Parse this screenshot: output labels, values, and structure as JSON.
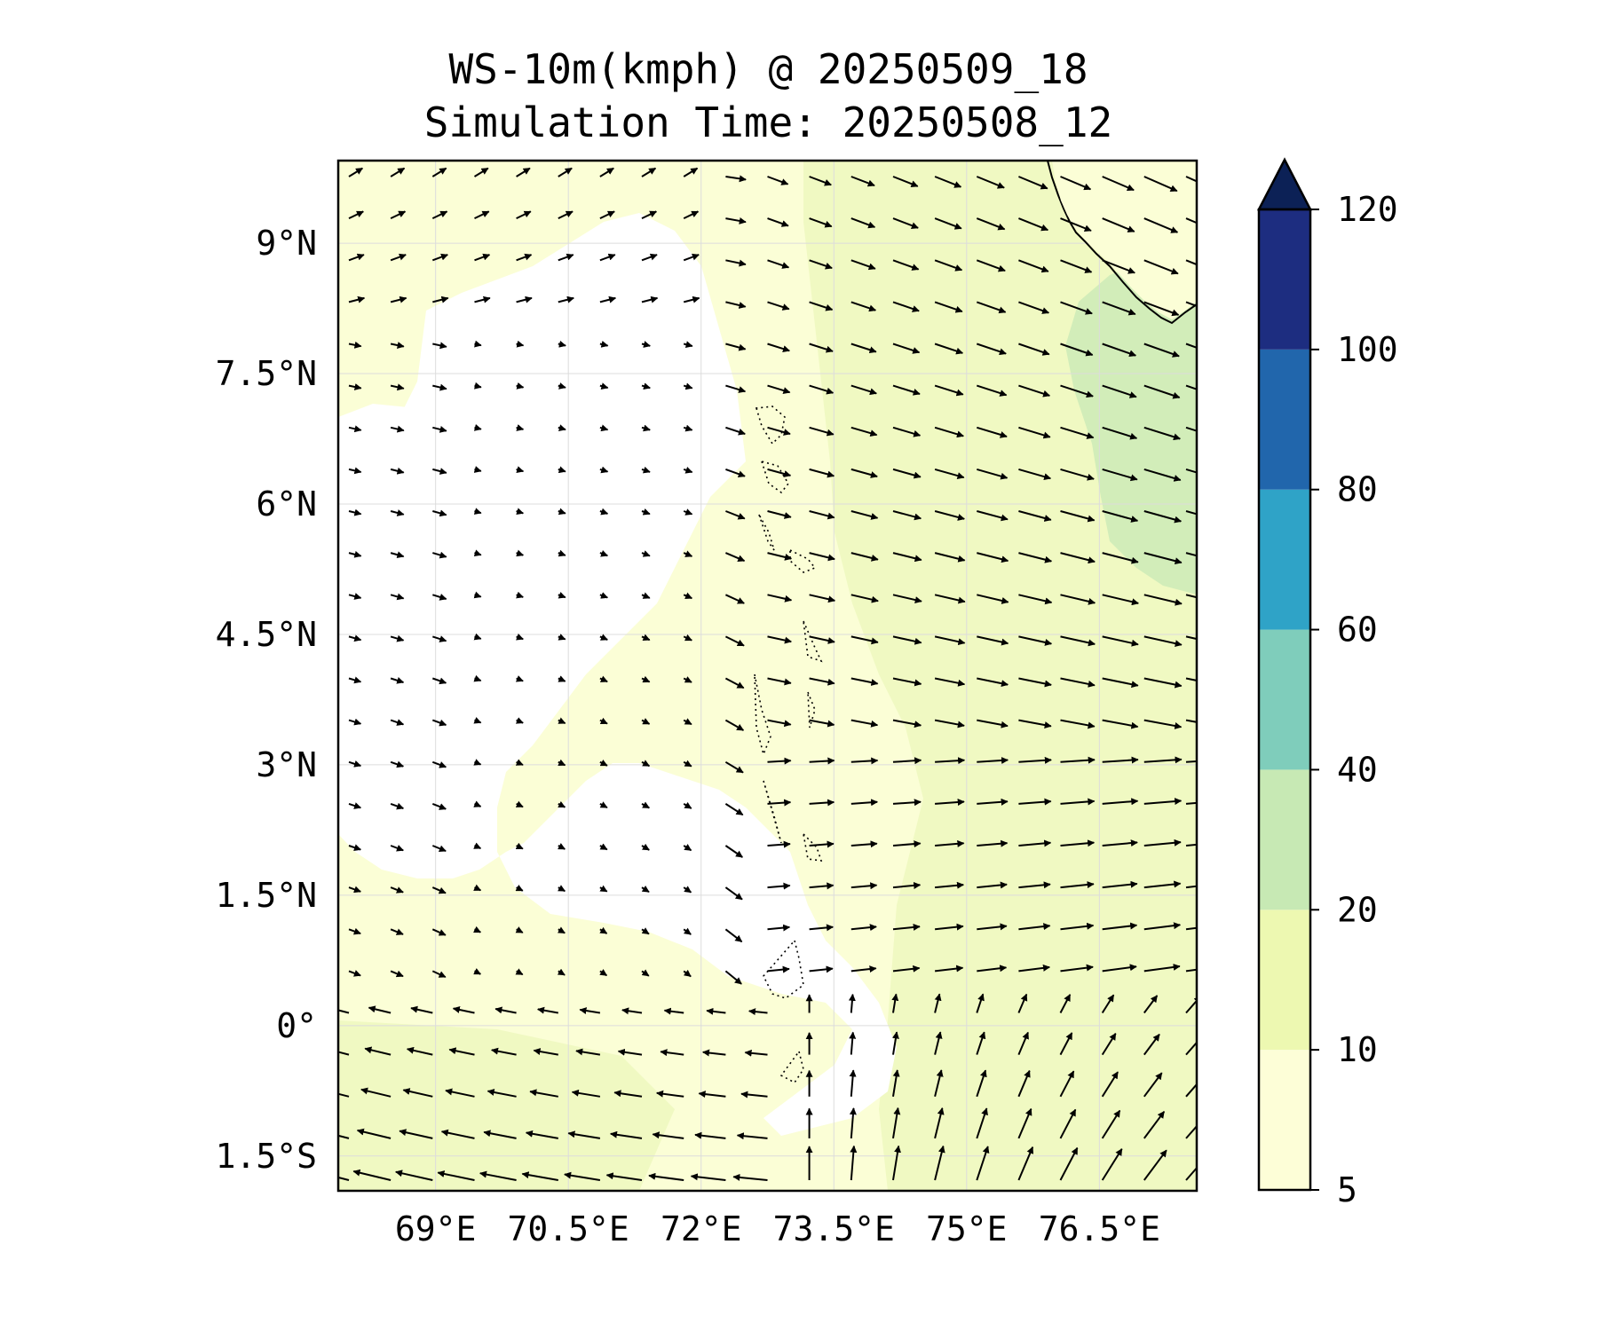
{
  "title": {
    "line1": "WS-10m(kmph) @ 20250509_18",
    "line2": "Simulation Time: 20250508_12"
  },
  "map": {
    "lon_range": [
      67.9,
      77.6
    ],
    "lat_range": [
      -1.9,
      9.95
    ],
    "lon_ticks": [
      {
        "value": 69,
        "label": "69°E"
      },
      {
        "value": 70.5,
        "label": "70.5°E"
      },
      {
        "value": 72,
        "label": "72°E"
      },
      {
        "value": 73.5,
        "label": "73.5°E"
      },
      {
        "value": 75,
        "label": "75°E"
      },
      {
        "value": 76.5,
        "label": "76.5°E"
      }
    ],
    "lat_ticks": [
      {
        "value": 9,
        "label": "9°N"
      },
      {
        "value": 7.5,
        "label": "7.5°N"
      },
      {
        "value": 6,
        "label": "6°N"
      },
      {
        "value": 4.5,
        "label": "4.5°N"
      },
      {
        "value": 3,
        "label": "3°N"
      },
      {
        "value": 1.5,
        "label": "1.5°N"
      },
      {
        "value": 0,
        "label": "0°"
      },
      {
        "value": -1.5,
        "label": "1.5°S"
      }
    ],
    "grid": true,
    "colors": {
      "calm": "#ffffff",
      "light": "#fbfed6",
      "moderate": "#f0f9c2",
      "fresh": "#d2edb9",
      "arrow": "#000000",
      "coast": "#000000"
    }
  },
  "colorbar": {
    "levels": [
      {
        "value": 5,
        "label": "5",
        "color": "#fdfed7"
      },
      {
        "value": 10,
        "label": "10",
        "color": "#edf8b1"
      },
      {
        "value": 20,
        "label": "20",
        "color": "#c7e9b4"
      },
      {
        "value": 40,
        "label": "40",
        "color": "#7fcdbb"
      },
      {
        "value": 60,
        "label": "60",
        "color": "#2fa3c7"
      },
      {
        "value": 80,
        "label": "80",
        "color": "#2166ac"
      },
      {
        "value": 100,
        "label": "100",
        "color": "#1d2d80"
      },
      {
        "value": 120,
        "label": "120",
        "color": "#0c2156"
      }
    ],
    "extend": "max"
  }
}
